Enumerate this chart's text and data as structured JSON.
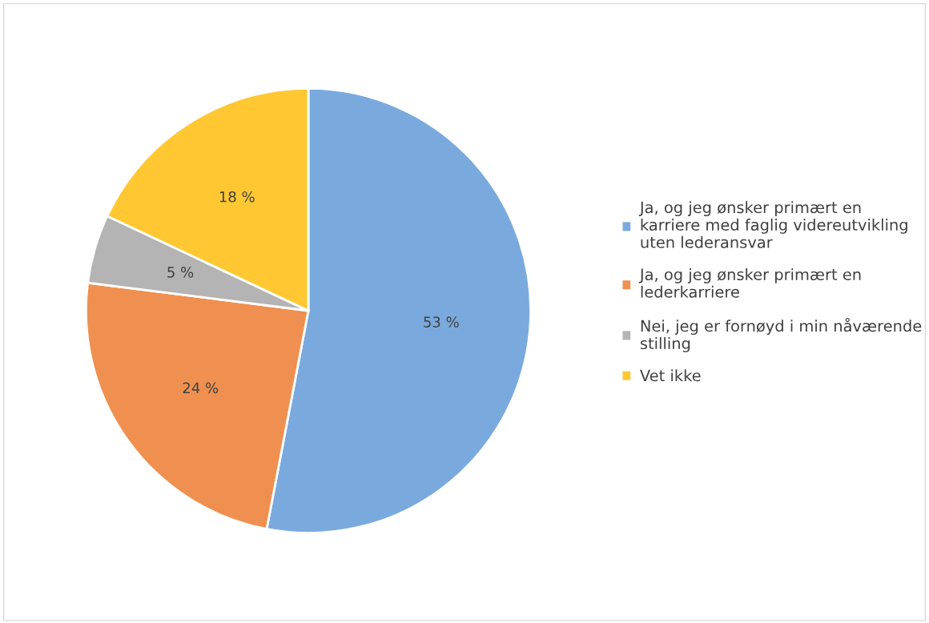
{
  "chart_data": {
    "type": "pie",
    "categories": [
      "Ja, og jeg ønsker primært en\nkarriere med faglig videreutvikling\nuten lederansvar",
      "Ja, og jeg ønsker primært en\nlederkarriere",
      "Nei, jeg er fornøyd i min nåværende\nstilling",
      "Vet ikke"
    ],
    "values": [
      53,
      24,
      5,
      18
    ],
    "colors": [
      "#7aaadd",
      "#ef9050",
      "#b4b4b4",
      "#ffc832"
    ],
    "value_labels": [
      "53 %",
      "24 %",
      "5 %",
      "18 %"
    ],
    "legend": "right"
  }
}
